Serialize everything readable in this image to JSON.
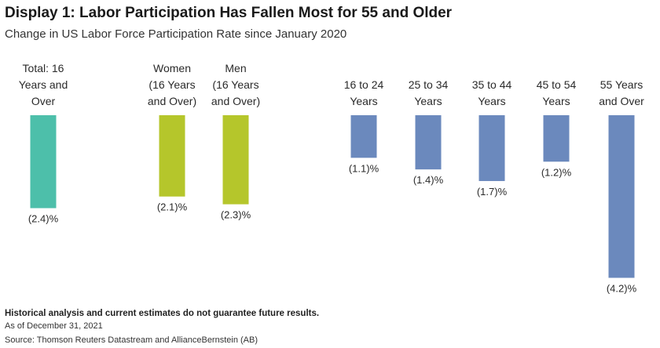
{
  "chart_data": {
    "type": "bar",
    "title": "Display 1: Labor Participation Has Fallen Most for 55 and Older",
    "subtitle": "Change in US Labor Force Participation Rate since January 2020",
    "categories": [
      "Total: 16 Years and Over",
      "Women (16 Years and Over)",
      "Men (16 Years and Over)",
      "16 to 24 Years",
      "25 to 34 Years",
      "35 to 44 Years",
      "45 to 54 Years",
      "55 Years and Over"
    ],
    "category_lines": [
      [
        "Total: 16",
        "Years and",
        "Over"
      ],
      [
        "Women",
        "(16 Years",
        "and Over)"
      ],
      [
        "Men",
        "(16 Years",
        "and Over)"
      ],
      [
        "16 to 24",
        "Years"
      ],
      [
        "25 to 34",
        "Years"
      ],
      [
        "35 to 44",
        "Years"
      ],
      [
        "45 to 54",
        "Years"
      ],
      [
        "55 Years",
        "and Over"
      ]
    ],
    "values": [
      -2.4,
      -2.1,
      -2.3,
      -1.1,
      -1.4,
      -1.7,
      -1.2,
      -4.2
    ],
    "value_labels": [
      "(2.4)%",
      "(2.1)%",
      "(2.3)%",
      "(1.1)%",
      "(1.4)%",
      "(1.7)%",
      "(1.2)%",
      "(4.2)%"
    ],
    "colors": [
      "#4dbfaa",
      "#b5c62b",
      "#b5c62b",
      "#6b89bd",
      "#6b89bd",
      "#6b89bd",
      "#6b89bd",
      "#6b89bd"
    ],
    "xlabel": "",
    "ylabel": "",
    "grid": false
  },
  "footer": {
    "disclaimer": "Historical analysis and current estimates do not guarantee future results.",
    "as_of": "As of  December 31, 2021",
    "source": "Source: Thomson Reuters Datastream and AllianceBernstein (AB)"
  }
}
